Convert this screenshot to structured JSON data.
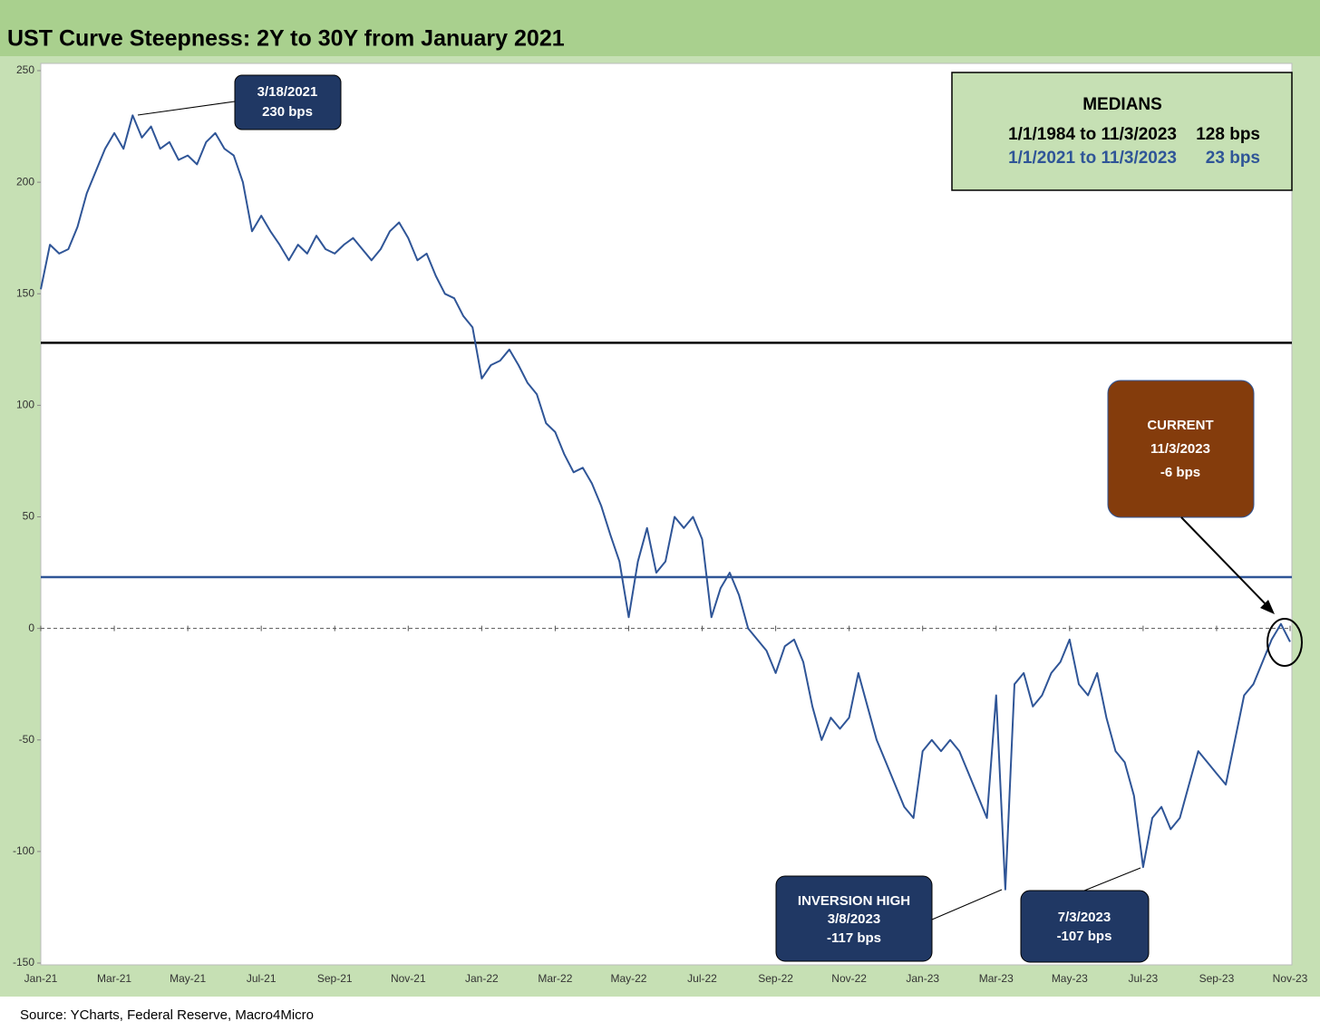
{
  "chart_data": {
    "type": "line",
    "title": "UST Curve Steepness: 2Y to 30Y from January 2021",
    "source": "Source: YCharts, Federal Reserve, Macro4Micro",
    "categories": [
      "Jan-21",
      null,
      null,
      null,
      null,
      null,
      null,
      null,
      "Mar-21",
      null,
      null,
      null,
      null,
      null,
      null,
      null,
      "May-21",
      null,
      null,
      null,
      null,
      null,
      null,
      null,
      "Jul-21",
      null,
      null,
      null,
      null,
      null,
      null,
      null,
      "Sep-21",
      null,
      null,
      null,
      null,
      null,
      null,
      null,
      "Nov-21",
      null,
      null,
      null,
      null,
      null,
      null,
      null,
      "Jan-22",
      null,
      null,
      null,
      null,
      null,
      null,
      null,
      "Mar-22",
      null,
      null,
      null,
      null,
      null,
      null,
      null,
      "May-22",
      null,
      null,
      null,
      null,
      null,
      null,
      null,
      "Jul-22",
      null,
      null,
      null,
      null,
      null,
      null,
      null,
      "Sep-22",
      null,
      null,
      null,
      null,
      null,
      null,
      null,
      "Nov-22",
      null,
      null,
      null,
      null,
      null,
      null,
      null,
      "Jan-23",
      null,
      null,
      null,
      null,
      null,
      null,
      null,
      "Mar-23",
      null,
      null,
      null,
      null,
      null,
      null,
      null,
      "May-23",
      null,
      null,
      null,
      null,
      null,
      null,
      null,
      "Jul-23",
      null,
      null,
      null,
      null,
      null,
      null,
      null,
      "Sep-23",
      null,
      null,
      null,
      null,
      null,
      null,
      null,
      "Nov-23"
    ],
    "series": [
      {
        "name": "2Y to 30Y",
        "color": "#2f5597",
        "values": [
          152,
          172,
          168,
          170,
          180,
          195,
          205,
          215,
          222,
          215,
          230,
          220,
          225,
          215,
          218,
          210,
          212,
          208,
          218,
          222,
          215,
          212,
          200,
          178,
          185,
          178,
          172,
          165,
          172,
          168,
          176,
          170,
          168,
          172,
          175,
          170,
          165,
          170,
          178,
          182,
          175,
          165,
          168,
          158,
          150,
          148,
          140,
          135,
          112,
          118,
          120,
          125,
          118,
          110,
          105,
          92,
          88,
          78,
          70,
          72,
          65,
          55,
          42,
          30,
          5,
          30,
          45,
          25,
          30,
          50,
          45,
          50,
          40,
          5,
          18,
          25,
          15,
          0,
          -5,
          -10,
          -20,
          -8,
          -5,
          -15,
          -35,
          -50,
          -40,
          -45,
          -40,
          -20,
          -35,
          -50,
          -60,
          -70,
          -80,
          -85,
          -55,
          -50,
          -55,
          -50,
          -55,
          -65,
          -75,
          -85,
          -30,
          -117,
          -25,
          -20,
          -35,
          -30,
          -20,
          -15,
          -5,
          -25,
          -30,
          -20,
          -40,
          -55,
          -60,
          -75,
          -107,
          -85,
          -80,
          -90,
          -85,
          -70,
          -55,
          -60,
          -65,
          -70,
          -50,
          -30,
          -25,
          -15,
          -5,
          2,
          -6
        ]
      }
    ],
    "ylim": [
      -150,
      250
    ],
    "yticks": [
      -150,
      -100,
      -50,
      0,
      50,
      100,
      150,
      200,
      250
    ],
    "medians_title": "MEDIANS",
    "reference_lines": [
      {
        "name": "1/1/1984 to 11/3/2023",
        "value": 128,
        "value_label": "128 bps",
        "color": "#000000"
      },
      {
        "name": "1/1/2021 to 11/3/2023",
        "value": 23,
        "value_label": "23 bps",
        "color": "#2f5597"
      }
    ],
    "annotations": [
      {
        "lines": [
          "3/18/2021",
          "230 bps"
        ]
      },
      {
        "lines": [
          "CURRENT",
          "11/3/2023",
          "-6 bps"
        ]
      },
      {
        "lines": [
          "INVERSION HIGH",
          "3/8/2023",
          "-117 bps"
        ]
      },
      {
        "lines": [
          "7/3/2023",
          "-107 bps"
        ]
      }
    ]
  }
}
